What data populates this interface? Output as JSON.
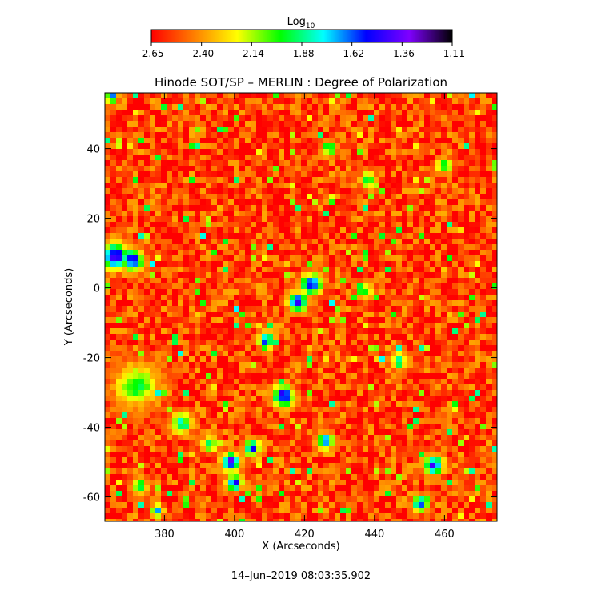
{
  "chart_data": {
    "type": "heatmap",
    "title": "Hinode SOT/SP – MERLIN : Degree of Polarization",
    "xlabel": "X (Arcseconds)",
    "ylabel": "Y (Arcseconds)",
    "xlim": [
      363,
      475
    ],
    "ylim": [
      -67,
      56
    ],
    "x_ticks": [
      380,
      400,
      420,
      440,
      460
    ],
    "y_ticks": [
      -60,
      -40,
      -20,
      0,
      20,
      40
    ],
    "colorbar": {
      "label": "Log",
      "label_subscript": "10",
      "ticks": [
        "-2.65",
        "-2.40",
        "-2.14",
        "-1.88",
        "-1.62",
        "-1.36",
        "-1.11"
      ],
      "range": [
        -2.65,
        -1.11
      ],
      "colormap": [
        "#ff0000",
        "#ff7f00",
        "#ffff00",
        "#00ff00",
        "#00ffff",
        "#0000ff",
        "#7f00ff",
        "#000000"
      ]
    },
    "background_level": -2.56,
    "features": [
      {
        "x": 366,
        "y": 9,
        "peak": -1.36,
        "spread": 2.5
      },
      {
        "x": 371,
        "y": 8,
        "peak": -1.4,
        "spread": 2.0
      },
      {
        "x": 422,
        "y": 1,
        "peak": -1.5,
        "spread": 2.0
      },
      {
        "x": 418,
        "y": -4,
        "peak": -1.45,
        "spread": 1.8
      },
      {
        "x": 409,
        "y": -15,
        "peak": -1.5,
        "spread": 1.5
      },
      {
        "x": 414,
        "y": -31,
        "peak": -1.4,
        "spread": 2.0
      },
      {
        "x": 372,
        "y": -28,
        "peak": -1.95,
        "spread": 4.0
      },
      {
        "x": 399,
        "y": -50,
        "peak": -1.4,
        "spread": 1.8
      },
      {
        "x": 400,
        "y": -56,
        "peak": -1.45,
        "spread": 1.5
      },
      {
        "x": 405,
        "y": -46,
        "peak": -1.5,
        "spread": 1.5
      },
      {
        "x": 426,
        "y": -44,
        "peak": -1.55,
        "spread": 1.5
      },
      {
        "x": 457,
        "y": -51,
        "peak": -1.45,
        "spread": 1.8
      },
      {
        "x": 453,
        "y": -62,
        "peak": -1.5,
        "spread": 1.5
      },
      {
        "x": 385,
        "y": -39,
        "peak": -1.8,
        "spread": 2.0
      },
      {
        "x": 447,
        "y": -21,
        "peak": -1.8,
        "spread": 1.5
      },
      {
        "x": 393,
        "y": -45,
        "peak": -1.85,
        "spread": 1.5
      },
      {
        "x": 427,
        "y": 40,
        "peak": -1.8,
        "spread": 1.2
      },
      {
        "x": 438,
        "y": 31,
        "peak": -1.85,
        "spread": 1.5
      },
      {
        "x": 365,
        "y": 55,
        "peak": -1.6,
        "spread": 1.2
      },
      {
        "x": 378,
        "y": -64,
        "peak": -1.6,
        "spread": 1.2
      },
      {
        "x": 373,
        "y": -57,
        "peak": -1.85,
        "spread": 1.5
      },
      {
        "x": 437,
        "y": -1,
        "peak": -1.9,
        "spread": 1.5
      },
      {
        "x": 460,
        "y": 35,
        "peak": -1.9,
        "spread": 1.5
      }
    ]
  },
  "timestamp": "14–Jun–2019 08:03:35.902"
}
